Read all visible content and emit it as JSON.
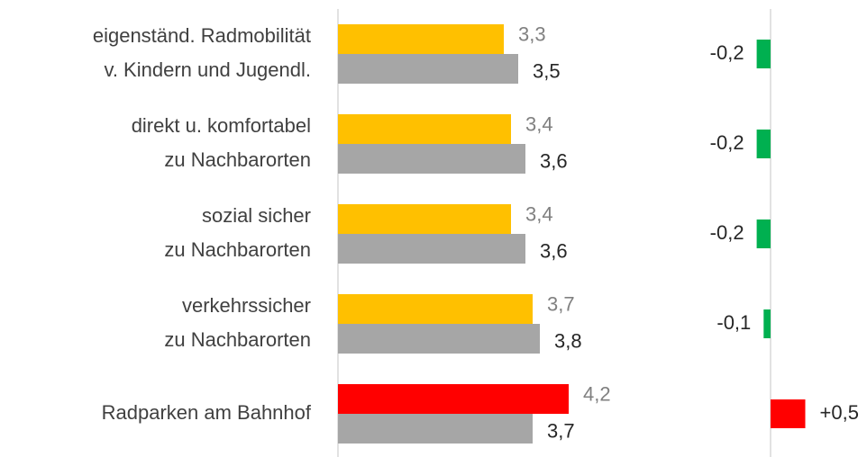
{
  "chart_data": [
    {
      "type": "hbar",
      "categories": [
        [
          "eigenständ. Radmobilität",
          "v. Kindern und Jugendl."
        ],
        [
          "direkt u. komfortabel",
          "zu Nachbarorten"
        ],
        [
          "sozial sicher",
          "zu Nachbarorten"
        ],
        [
          "verkehrssicher",
          "zu Nachbarorten"
        ],
        [
          "Radparken am Bahnhof"
        ]
      ],
      "series": [
        {
          "colors": [
            "#ffc000",
            "#ffc000",
            "#ffc000",
            "#ffc000",
            "#ff0000"
          ],
          "label_color": "#808080",
          "values": [
            3.3,
            3.4,
            3.4,
            3.7,
            4.2
          ],
          "value_labels": [
            "3,3",
            "3,4",
            "3,4",
            "3,7",
            "4,2"
          ]
        },
        {
          "colors": [
            "#a6a6a6",
            "#a6a6a6",
            "#a6a6a6",
            "#a6a6a6",
            "#a6a6a6"
          ],
          "label_color": "#262626",
          "values": [
            3.5,
            3.6,
            3.6,
            3.8,
            3.7
          ],
          "value_labels": [
            "3,5",
            "3,6",
            "3,6",
            "3,8",
            "3,7"
          ]
        }
      ],
      "xlim": [
        1,
        5
      ]
    },
    {
      "type": "diverging",
      "values": [
        -0.2,
        -0.2,
        -0.2,
        -0.1,
        0.5
      ],
      "value_labels": [
        "-0,2",
        "-0,2",
        "-0,2",
        "-0,1",
        "+0,5"
      ],
      "colors": [
        "#00b050",
        "#00b050",
        "#00b050",
        "#00b050",
        "#ff0000"
      ],
      "xlim": [
        -1,
        1
      ]
    }
  ]
}
